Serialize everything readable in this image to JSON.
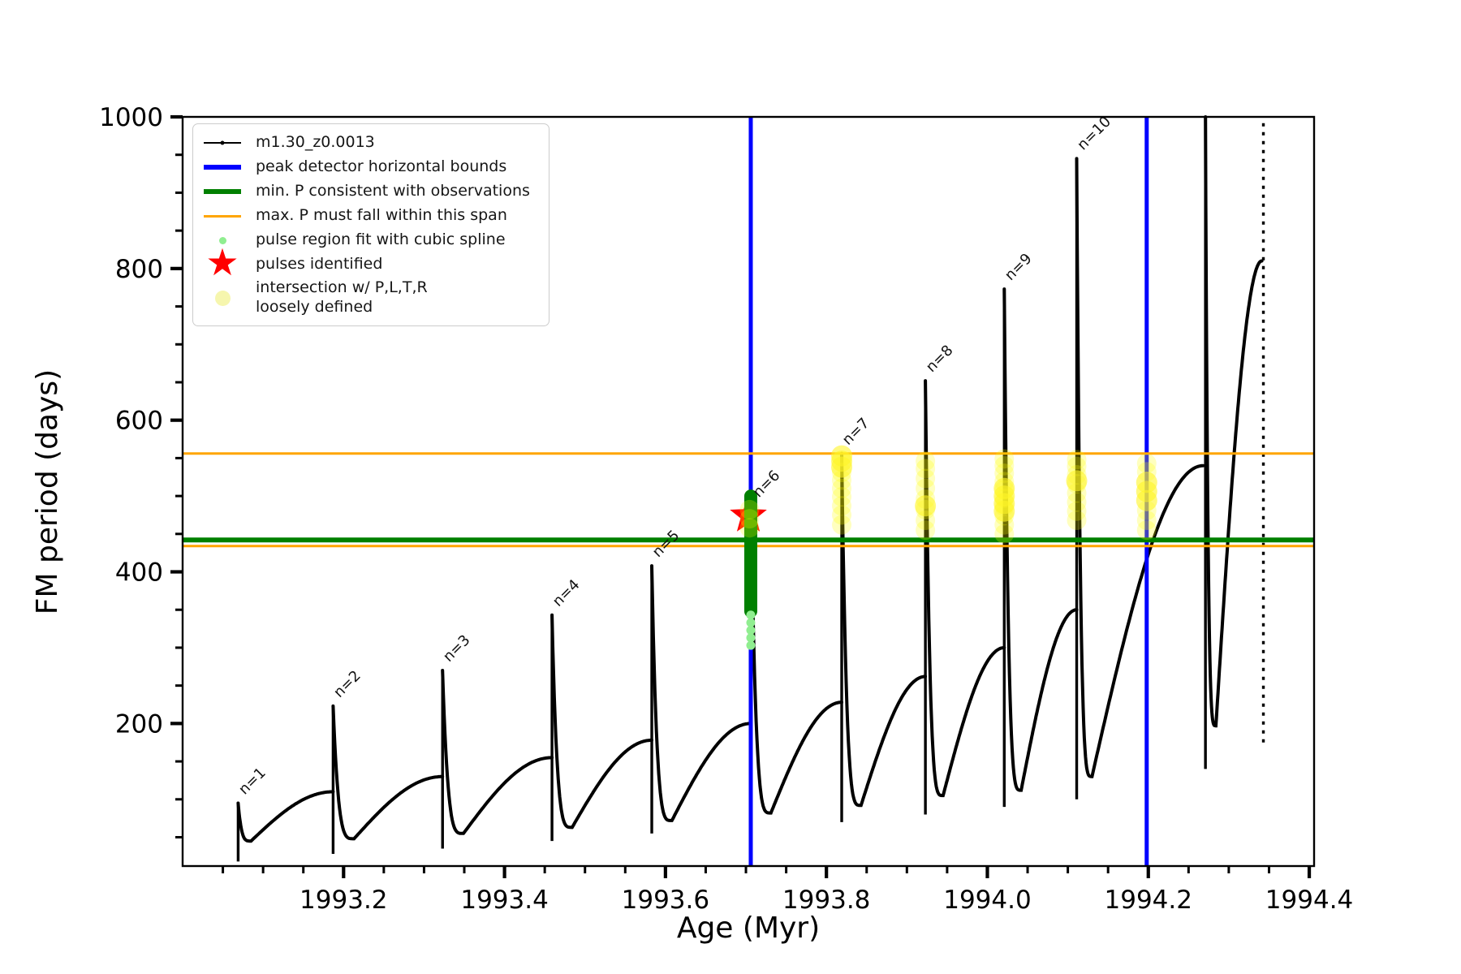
{
  "colors": {
    "curve": "#000000",
    "peak_bounds": "#0000ff",
    "min_p_line": "#008000",
    "max_p_line": "#ffa500",
    "pulse_region_fit": "#90ee90",
    "pulse_region_dense": "#008000",
    "pulses_identified": "#ff0000",
    "intersection_faint": "rgba(255,255,0,0.25)",
    "intersection_bright": "rgba(255,245,40,0.6)"
  },
  "legend": {
    "entries": [
      {
        "label": "m1.30_z0.0013",
        "handle": "line-dot-black"
      },
      {
        "label": "peak detector horizontal bounds",
        "handle": "line-blue"
      },
      {
        "label": "min. P consistent with observations",
        "handle": "line-green"
      },
      {
        "label": "max. P must fall within this span",
        "handle": "line-orange"
      },
      {
        "label": "pulse region fit with cubic spline",
        "handle": "dot-lightgreen"
      },
      {
        "label": "pulses identified",
        "handle": "star-red"
      },
      {
        "label": "intersection w/ P,L,T,R\nloosely defined",
        "handle": "dot-paleyellow"
      }
    ]
  },
  "chart_data": {
    "type": "line",
    "title": "",
    "xlabel": "Age (Myr)",
    "ylabel": "FM period (days)",
    "xlim": [
      1993.0,
      1994.406
    ],
    "ylim": [
      12,
      1000
    ],
    "grid": false,
    "legend_position": "upper-left",
    "x_major_ticks": [
      1993.2,
      1993.4,
      1993.6,
      1993.8,
      1994.0,
      1994.2,
      1994.4
    ],
    "x_tick_labels": [
      "1993.2",
      "1993.4",
      "1993.6",
      "1993.8",
      "1994.0",
      "1994.2",
      "1994.4"
    ],
    "x_minor_step": 0.05,
    "y_major_ticks": [
      200,
      400,
      600,
      800,
      1000
    ],
    "y_tick_labels": [
      "200",
      "400",
      "600",
      "800",
      "1000"
    ],
    "y_minor_step": 50,
    "series_label": "m1.30_z0.0013",
    "pulse_cycles": [
      {
        "label": "n=1",
        "spike_age": 1993.069,
        "spike_top": 95,
        "spike_bottom": 18,
        "dip_age": 1993.085,
        "dip_value": 45,
        "rise_end_age": 1993.187,
        "rise_end_value": 110
      },
      {
        "label": "n=2",
        "spike_age": 1993.187,
        "spike_top": 223,
        "spike_bottom": 28,
        "dip_age": 1993.213,
        "dip_value": 48,
        "rise_end_age": 1993.323,
        "rise_end_value": 130
      },
      {
        "label": "n=3",
        "spike_age": 1993.323,
        "spike_top": 270,
        "spike_bottom": 35,
        "dip_age": 1993.349,
        "dip_value": 55,
        "rise_end_age": 1993.459,
        "rise_end_value": 155
      },
      {
        "label": "n=4",
        "spike_age": 1993.459,
        "spike_top": 343,
        "spike_bottom": 45,
        "dip_age": 1993.484,
        "dip_value": 63,
        "rise_end_age": 1993.583,
        "rise_end_value": 178
      },
      {
        "label": "n=5",
        "spike_age": 1993.583,
        "spike_top": 408,
        "spike_bottom": 55,
        "dip_age": 1993.608,
        "dip_value": 72,
        "rise_end_age": 1993.706,
        "rise_end_value": 200
      },
      {
        "label": "n=6",
        "spike_age": 1993.706,
        "spike_top": 505,
        "spike_bottom": 60,
        "dip_age": 1993.731,
        "dip_value": 82,
        "rise_end_age": 1993.819,
        "rise_end_value": 228
      },
      {
        "label": "n=7",
        "spike_age": 1993.819,
        "spike_top": 556,
        "spike_bottom": 70,
        "dip_age": 1993.843,
        "dip_value": 92,
        "rise_end_age": 1993.923,
        "rise_end_value": 262
      },
      {
        "label": "n=8",
        "spike_age": 1993.923,
        "spike_top": 652,
        "spike_bottom": 80,
        "dip_age": 1993.945,
        "dip_value": 105,
        "rise_end_age": 1994.021,
        "rise_end_value": 300
      },
      {
        "label": "n=9",
        "spike_age": 1994.021,
        "spike_top": 773,
        "spike_bottom": 90,
        "dip_age": 1994.042,
        "dip_value": 112,
        "rise_end_age": 1994.111,
        "rise_end_value": 350
      },
      {
        "label": "n=10",
        "spike_age": 1994.111,
        "spike_top": 945,
        "spike_bottom": 100,
        "dip_age": 1994.13,
        "dip_value": 130,
        "rise_end_age": 1994.268,
        "rise_end_value": 540
      },
      {
        "label": "",
        "spike_age": 1994.271,
        "spike_top": 1000,
        "spike_bottom": 140,
        "dip_age": 1994.284,
        "dip_value": 197,
        "rise_end_age": 1994.341,
        "rise_end_value": 810
      },
      {
        "label": "",
        "spike_age": 1994.343,
        "spike_top": 1000,
        "spike_bottom": 175,
        "dashed": true
      }
    ],
    "pulse_labels": [
      {
        "text": "n=1",
        "age": 1993.071,
        "period": 100
      },
      {
        "text": "n=2",
        "age": 1993.189,
        "period": 228
      },
      {
        "text": "n=3",
        "age": 1993.325,
        "period": 275
      },
      {
        "text": "n=4",
        "age": 1993.461,
        "period": 348
      },
      {
        "text": "n=5",
        "age": 1993.585,
        "period": 413
      },
      {
        "text": "n=6",
        "age": 1993.71,
        "period": 492
      },
      {
        "text": "n=7",
        "age": 1993.821,
        "period": 561
      },
      {
        "text": "n=8",
        "age": 1993.925,
        "period": 657
      },
      {
        "text": "n=9",
        "age": 1994.023,
        "period": 778
      },
      {
        "text": "n=10",
        "age": 1994.113,
        "period": 950
      }
    ],
    "peak_detector_bounds_ages": [
      1993.706,
      1994.198
    ],
    "min_p_consistent": 442,
    "max_p_span": [
      434,
      556
    ],
    "pulse_region": {
      "age": 1993.706,
      "dense_span": [
        348,
        500
      ],
      "sparse_dots": [
        303,
        313,
        323,
        333,
        343
      ]
    },
    "pulses_identified": [
      {
        "age": 1993.703,
        "period": 474
      }
    ],
    "intersections": [
      {
        "age": 1993.7045,
        "dots": [
          458,
          470,
          482
        ],
        "bright_dots": []
      },
      {
        "age": 1993.819,
        "dots": [
          462,
          475,
          487,
          499,
          510,
          521,
          531
        ],
        "bright_dots": [
          538,
          546,
          553
        ]
      },
      {
        "age": 1993.923,
        "dots": [
          455,
          468,
          482,
          496,
          510,
          523,
          536,
          546
        ],
        "bright_dots": [
          487
        ]
      },
      {
        "age": 1994.021,
        "dots": [
          450,
          462,
          474,
          486,
          497,
          508,
          519,
          530,
          540,
          549
        ],
        "bright_dots": [
          480,
          490,
          500,
          510
        ]
      },
      {
        "age": 1994.111,
        "dots": [
          468,
          480,
          492,
          504,
          516,
          528,
          539,
          548
        ],
        "bright_dots": [
          520
        ]
      },
      {
        "age": 1994.198,
        "dots": [
          455,
          468,
          481,
          532,
          543
        ],
        "bright_dots": [
          494,
          506,
          518
        ]
      }
    ]
  }
}
